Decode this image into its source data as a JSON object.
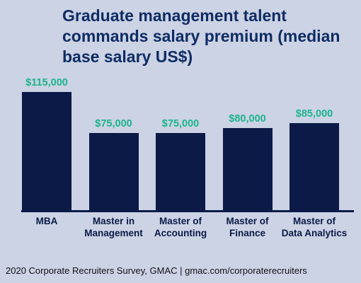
{
  "chart_data": {
    "type": "bar",
    "title": "Graduate management talent commands salary premium (median base salary US$)",
    "categories": [
      "MBA",
      "Master in\nManagement",
      "Master of\nAccounting",
      "Master of\nFinance",
      "Master of\nData Analytics"
    ],
    "values": [
      115000,
      75000,
      75000,
      80000,
      85000
    ],
    "value_labels": [
      "$115,000",
      "$75,000",
      "$75,000",
      "$80,000",
      "$85,000"
    ],
    "color": "#0b1a47",
    "label_color": "#1db48a",
    "source": "2020 Corporate Recruiters Survey, GMAC | gmac.com/corporaterecruiters"
  }
}
